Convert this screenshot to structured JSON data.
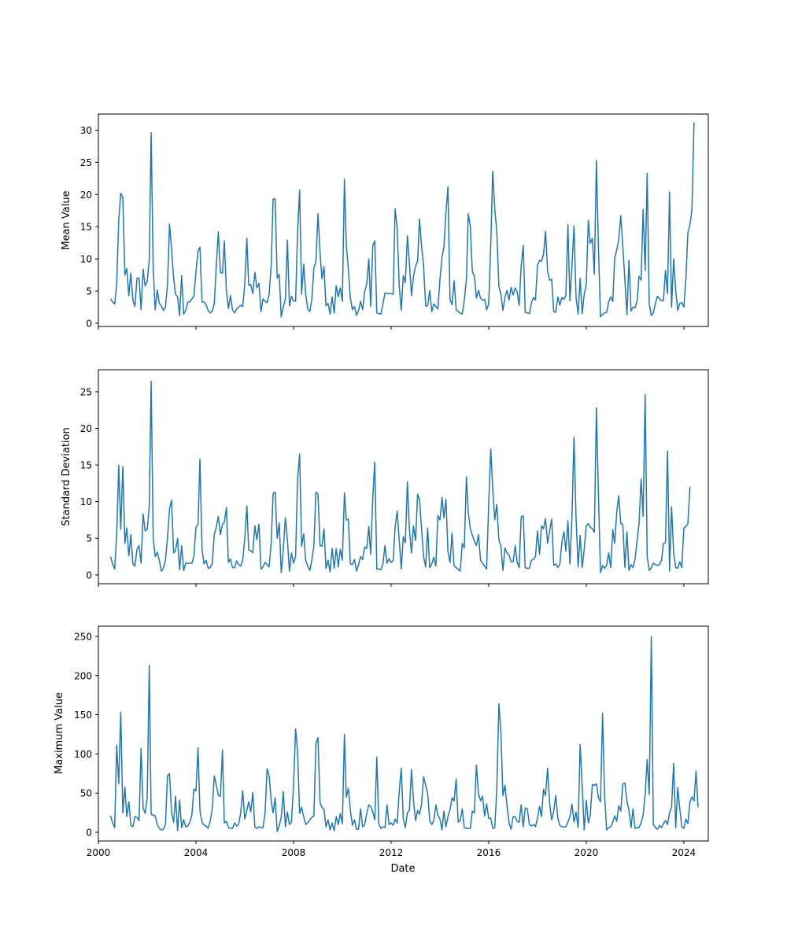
{
  "figure": {
    "xlabel": "Date",
    "series_color": "#1f77b4"
  },
  "chart_data": [
    {
      "type": "line",
      "ylabel": "Mean Value",
      "x_range": [
        "2000-01-01",
        "2025-01-01"
      ],
      "ylim": [
        -0.5,
        32.5
      ],
      "x_ticks": [
        "2000",
        "2004",
        "2008",
        "2012",
        "2016",
        "2020",
        "2024"
      ],
      "y_ticks": [
        0,
        5,
        10,
        15,
        20,
        25,
        30
      ],
      "show_x_tick_labels": false,
      "grid": false,
      "series": [
        {
          "start": "2000-07",
          "values": [
            3.8,
            3.3,
            3.0,
            6.0,
            16.0,
            20.2,
            19.6,
            7.5,
            8.5,
            4.3,
            7.8,
            3.5,
            2.6,
            7.0,
            7.0,
            2.1,
            8.4,
            5.8,
            6.5,
            9.9,
            29.6,
            8.5,
            2.1,
            5.2,
            3.1,
            2.7,
            2.0,
            2.5,
            6.0,
            15.4,
            11.5,
            7.0,
            4.5,
            4.1,
            1.2,
            7.4,
            1.4,
            2.0,
            3.3,
            3.3,
            3.8,
            4.2,
            8.0,
            11.2,
            11.8,
            3.3,
            3.3,
            2.9,
            2.0,
            1.6,
            1.9,
            3.0,
            9.0,
            14.2,
            7.9,
            7.8,
            12.8,
            5.0,
            2.3,
            4.3,
            2.1,
            1.6,
            2.2,
            2.5,
            2.8,
            2.6,
            6.0,
            13.2,
            5.9,
            6.0,
            4.6,
            7.9,
            5.5,
            6.2,
            1.8,
            3.8,
            3.4,
            3.2,
            4.5,
            9.0,
            19.3,
            19.3,
            7.0,
            7.6,
            1.0,
            2.5,
            3.8,
            12.9,
            2.7,
            4.2,
            3.5,
            3.4,
            14.0,
            20.7,
            4.5,
            9.2,
            4.5,
            2.2,
            1.8,
            3.7,
            8.6,
            9.6,
            17.0,
            11.0,
            6.9,
            8.8,
            2.7,
            3.1,
            1.4,
            4.1,
            1.6,
            5.8,
            4.1,
            5.5,
            3.4,
            22.4,
            12.3,
            8.4,
            3.9,
            2.1,
            2.6,
            1.2,
            2.0,
            3.4,
            2.1,
            4.9,
            6.1,
            10.0,
            2.6,
            12.0,
            12.8,
            1.6,
            1.5,
            1.4,
            3.0,
            4.7,
            4.6,
            4.6,
            4.6,
            4.5,
            17.8,
            14.7,
            5.9,
            2.0,
            7.4,
            6.3,
            13.6,
            9.3,
            4.3,
            7.3,
            8.9,
            9.6,
            16.2,
            11.9,
            9.0,
            2.7,
            2.7,
            5.1,
            1.8,
            3.0,
            2.6,
            2.2,
            6.8,
            10.3,
            11.8,
            17.2,
            21.2,
            3.7,
            2.9,
            6.6,
            2.1,
            1.8,
            1.6,
            1.4,
            3.6,
            6.8,
            17.0,
            15.1,
            8.0,
            7.3,
            3.9,
            5.1,
            3.9,
            3.6,
            3.7,
            2.1,
            3.0,
            12.2,
            23.6,
            17.8,
            14.3,
            5.8,
            4.5,
            2.0,
            4.1,
            5.1,
            3.6,
            5.6,
            4.4,
            5.5,
            4.9,
            2.8,
            8.8,
            12.1,
            1.7,
            1.6,
            1.5,
            3.1,
            4.0,
            3.6,
            9.0,
            9.8,
            9.6,
            10.7,
            14.3,
            8.1,
            6.7,
            6.8,
            1.8,
            1.7,
            4.1,
            2.8,
            4.0,
            3.7,
            4.3,
            15.3,
            3.5,
            9.0,
            15.1,
            4.0,
            1.4,
            7.0,
            1.5,
            4.5,
            6.0,
            16.0,
            12.4,
            13.2,
            7.6,
            25.3,
            11.9,
            1.0,
            1.4,
            1.6,
            1.7,
            3.3,
            4.1,
            3.4,
            10.1,
            11.4,
            13.0,
            16.7,
            11.9,
            6.8,
            1.3,
            9.8,
            1.9,
            2.5,
            2.4,
            3.5,
            7.3,
            6.7,
            17.7,
            8.2,
            23.3,
            3.0,
            1.2,
            1.6,
            3.1,
            4.2,
            3.8,
            3.5,
            3.5,
            8.2,
            4.6,
            20.4,
            2.5,
            10.0,
            5.1,
            2.0,
            3.1,
            3.2,
            2.5,
            7.0,
            14.0,
            15.3,
            17.6,
            31.2
          ]
        }
      ]
    },
    {
      "type": "line",
      "ylabel": "Standard Deviation",
      "x_range": [
        "2000-01-01",
        "2025-01-01"
      ],
      "ylim": [
        -1.2,
        28.0
      ],
      "x_ticks": [
        "2000",
        "2004",
        "2008",
        "2012",
        "2016",
        "2020",
        "2024"
      ],
      "y_ticks": [
        0,
        5,
        10,
        15,
        20,
        25
      ],
      "show_x_tick_labels": false,
      "grid": false,
      "series": [
        {
          "start": "2000-07",
          "values": [
            2.5,
            1.5,
            0.8,
            5.5,
            15.0,
            6.2,
            14.8,
            4.3,
            6.4,
            2.6,
            5.5,
            1.5,
            1.2,
            3.5,
            4.0,
            1.6,
            8.3,
            6.0,
            6.2,
            9.3,
            26.4,
            5.0,
            2.5,
            3.1,
            2.0,
            0.5,
            0.9,
            2.0,
            5.0,
            9.0,
            10.2,
            3.0,
            3.3,
            5.0,
            0.7,
            4.0,
            0.6,
            1.6,
            1.6,
            1.6,
            1.6,
            2.5,
            6.5,
            6.9,
            15.8,
            3.5,
            1.5,
            2.0,
            0.9,
            1.0,
            1.5,
            5.5,
            6.5,
            8.0,
            5.5,
            6.9,
            7.2,
            9.2,
            1.7,
            2.2,
            1.0,
            1.0,
            1.9,
            1.4,
            1.2,
            2.0,
            5.0,
            9.4,
            3.4,
            3.3,
            3.0,
            6.7,
            4.8,
            6.9,
            0.8,
            1.1,
            1.7,
            1.4,
            1.1,
            4.5,
            11.1,
            11.3,
            5.0,
            7.1,
            0.3,
            3.5,
            7.8,
            4.8,
            0.5,
            3.0,
            1.6,
            2.5,
            13.0,
            16.5,
            3.9,
            5.6,
            2.0,
            1.2,
            0.6,
            2.0,
            4.0,
            11.3,
            11.0,
            4.0,
            3.9,
            6.3,
            0.9,
            2.0,
            0.4,
            3.6,
            0.9,
            3.6,
            1.1,
            3.5,
            2.0,
            11.2,
            7.5,
            7.6,
            1.5,
            1.4,
            2.1,
            0.5,
            1.4,
            2.5,
            2.1,
            3.8,
            3.6,
            6.6,
            2.8,
            10.5,
            15.4,
            0.8,
            0.8,
            0.7,
            1.5,
            4.0,
            1.6,
            2.2,
            1.7,
            2.0,
            6.5,
            8.7,
            4.8,
            0.8,
            5.2,
            4.4,
            12.7,
            6.2,
            3.0,
            6.7,
            4.7,
            11.0,
            10.3,
            6.3,
            2.5,
            1.1,
            6.4,
            1.0,
            1.5,
            2.4,
            1.2,
            8.1,
            7.5,
            10.6,
            7.8,
            10.3,
            3.2,
            1.7,
            5.7,
            1.2,
            1.0,
            0.8,
            0.5,
            4.3,
            3.7,
            13.4,
            8.6,
            6.3,
            5.4,
            4.6,
            4.0,
            5.5,
            2.0,
            1.6,
            1.2,
            0.8,
            9.7,
            17.2,
            11.9,
            7.5,
            9.6,
            4.8,
            4.0,
            0.6,
            3.7,
            3.0,
            2.7,
            1.8,
            1.8,
            4.0,
            1.8,
            1.0,
            7.9,
            8.1,
            1.0,
            0.9,
            0.9,
            2.0,
            2.1,
            2.5,
            6.0,
            2.8,
            6.7,
            6.3,
            7.7,
            4.3,
            6.0,
            7.6,
            1.3,
            1.5,
            1.0,
            1.4,
            4.5,
            5.9,
            3.2,
            7.4,
            1.5,
            8.0,
            18.8,
            7.7,
            1.1,
            5.4,
            1.0,
            3.5,
            6.7,
            7.0,
            6.5,
            6.3,
            5.8,
            22.8,
            11.0,
            0.3,
            1.3,
            0.9,
            1.3,
            3.0,
            1.0,
            6.2,
            4.3,
            8.6,
            10.8,
            7.0,
            6.9,
            1.0,
            5.9,
            0.6,
            1.4,
            1.0,
            2.2,
            4.8,
            7.0,
            13.1,
            8.0,
            24.6,
            2.5,
            0.6,
            1.0,
            1.6,
            1.4,
            1.3,
            1.4,
            2.0,
            4.3,
            4.4,
            16.9,
            0.5,
            9.3,
            3.0,
            1.0,
            0.9,
            1.8,
            1.0,
            6.4,
            6.6,
            7.0,
            12.0
          ]
        }
      ]
    },
    {
      "type": "line",
      "ylabel": "Maximum Value",
      "x_range": [
        "2000-01-01",
        "2025-01-01"
      ],
      "ylim": [
        -11,
        263
      ],
      "x_ticks": [
        "2000",
        "2004",
        "2008",
        "2012",
        "2016",
        "2020",
        "2024"
      ],
      "y_ticks": [
        0,
        50,
        100,
        150,
        200,
        250
      ],
      "show_x_tick_labels": true,
      "grid": false,
      "series": [
        {
          "start": "2000-07",
          "values": [
            21,
            12,
            6,
            111,
            62,
            153,
            25,
            58,
            20,
            39,
            9,
            7,
            20,
            19,
            15,
            107,
            31,
            24,
            44,
            213,
            23,
            22,
            21,
            10,
            5,
            3,
            4,
            10,
            72,
            75,
            25,
            13,
            46,
            2,
            41,
            6,
            16,
            7,
            8,
            13,
            22,
            55,
            53,
            108,
            27,
            13,
            9,
            8,
            5,
            14,
            30,
            72,
            60,
            47,
            46,
            105,
            12,
            14,
            6,
            5,
            5,
            12,
            8,
            10,
            25,
            53,
            17,
            28,
            39,
            26,
            51,
            7,
            5,
            7,
            6,
            6,
            25,
            81,
            72,
            40,
            25,
            44,
            1,
            8,
            20,
            52,
            7,
            26,
            10,
            13,
            60,
            132,
            104,
            24,
            32,
            20,
            10,
            12,
            16,
            19,
            21,
            113,
            121,
            38,
            32,
            29,
            7,
            16,
            3,
            12,
            2,
            20,
            10,
            24,
            11,
            125,
            45,
            56,
            28,
            9,
            16,
            4,
            4,
            30,
            7,
            10,
            24,
            35,
            33,
            26,
            16,
            96,
            11,
            5,
            7,
            6,
            35,
            10,
            12,
            9,
            17,
            12,
            52,
            82,
            17,
            6,
            25,
            28,
            80,
            41,
            15,
            28,
            23,
            36,
            71,
            60,
            50,
            15,
            10,
            15,
            35,
            22,
            17,
            3,
            27,
            7,
            20,
            29,
            44,
            40,
            68,
            13,
            15,
            30,
            6,
            5,
            5,
            5,
            27,
            25,
            86,
            49,
            40,
            46,
            21,
            36,
            18,
            18,
            5,
            6,
            54,
            164,
            130,
            47,
            60,
            34,
            12,
            4,
            20,
            20,
            14,
            13,
            35,
            7,
            31,
            30,
            10,
            8,
            10,
            7,
            18,
            33,
            20,
            55,
            47,
            82,
            37,
            16,
            27,
            47,
            18,
            9,
            7,
            7,
            7,
            13,
            20,
            36,
            13,
            26,
            6,
            112,
            60,
            3,
            41,
            12,
            22,
            61,
            60,
            62,
            44,
            39,
            152,
            48,
            3,
            6,
            7,
            13,
            21,
            14,
            34,
            27,
            62,
            63,
            40,
            28,
            6,
            30,
            5,
            6,
            6,
            12,
            22,
            48,
            93,
            48,
            250,
            10,
            6,
            4,
            9,
            6,
            11,
            15,
            10,
            25,
            32,
            88,
            6,
            57,
            30,
            7,
            5,
            17,
            11,
            39,
            45,
            40,
            78,
            32
          ]
        }
      ]
    }
  ]
}
